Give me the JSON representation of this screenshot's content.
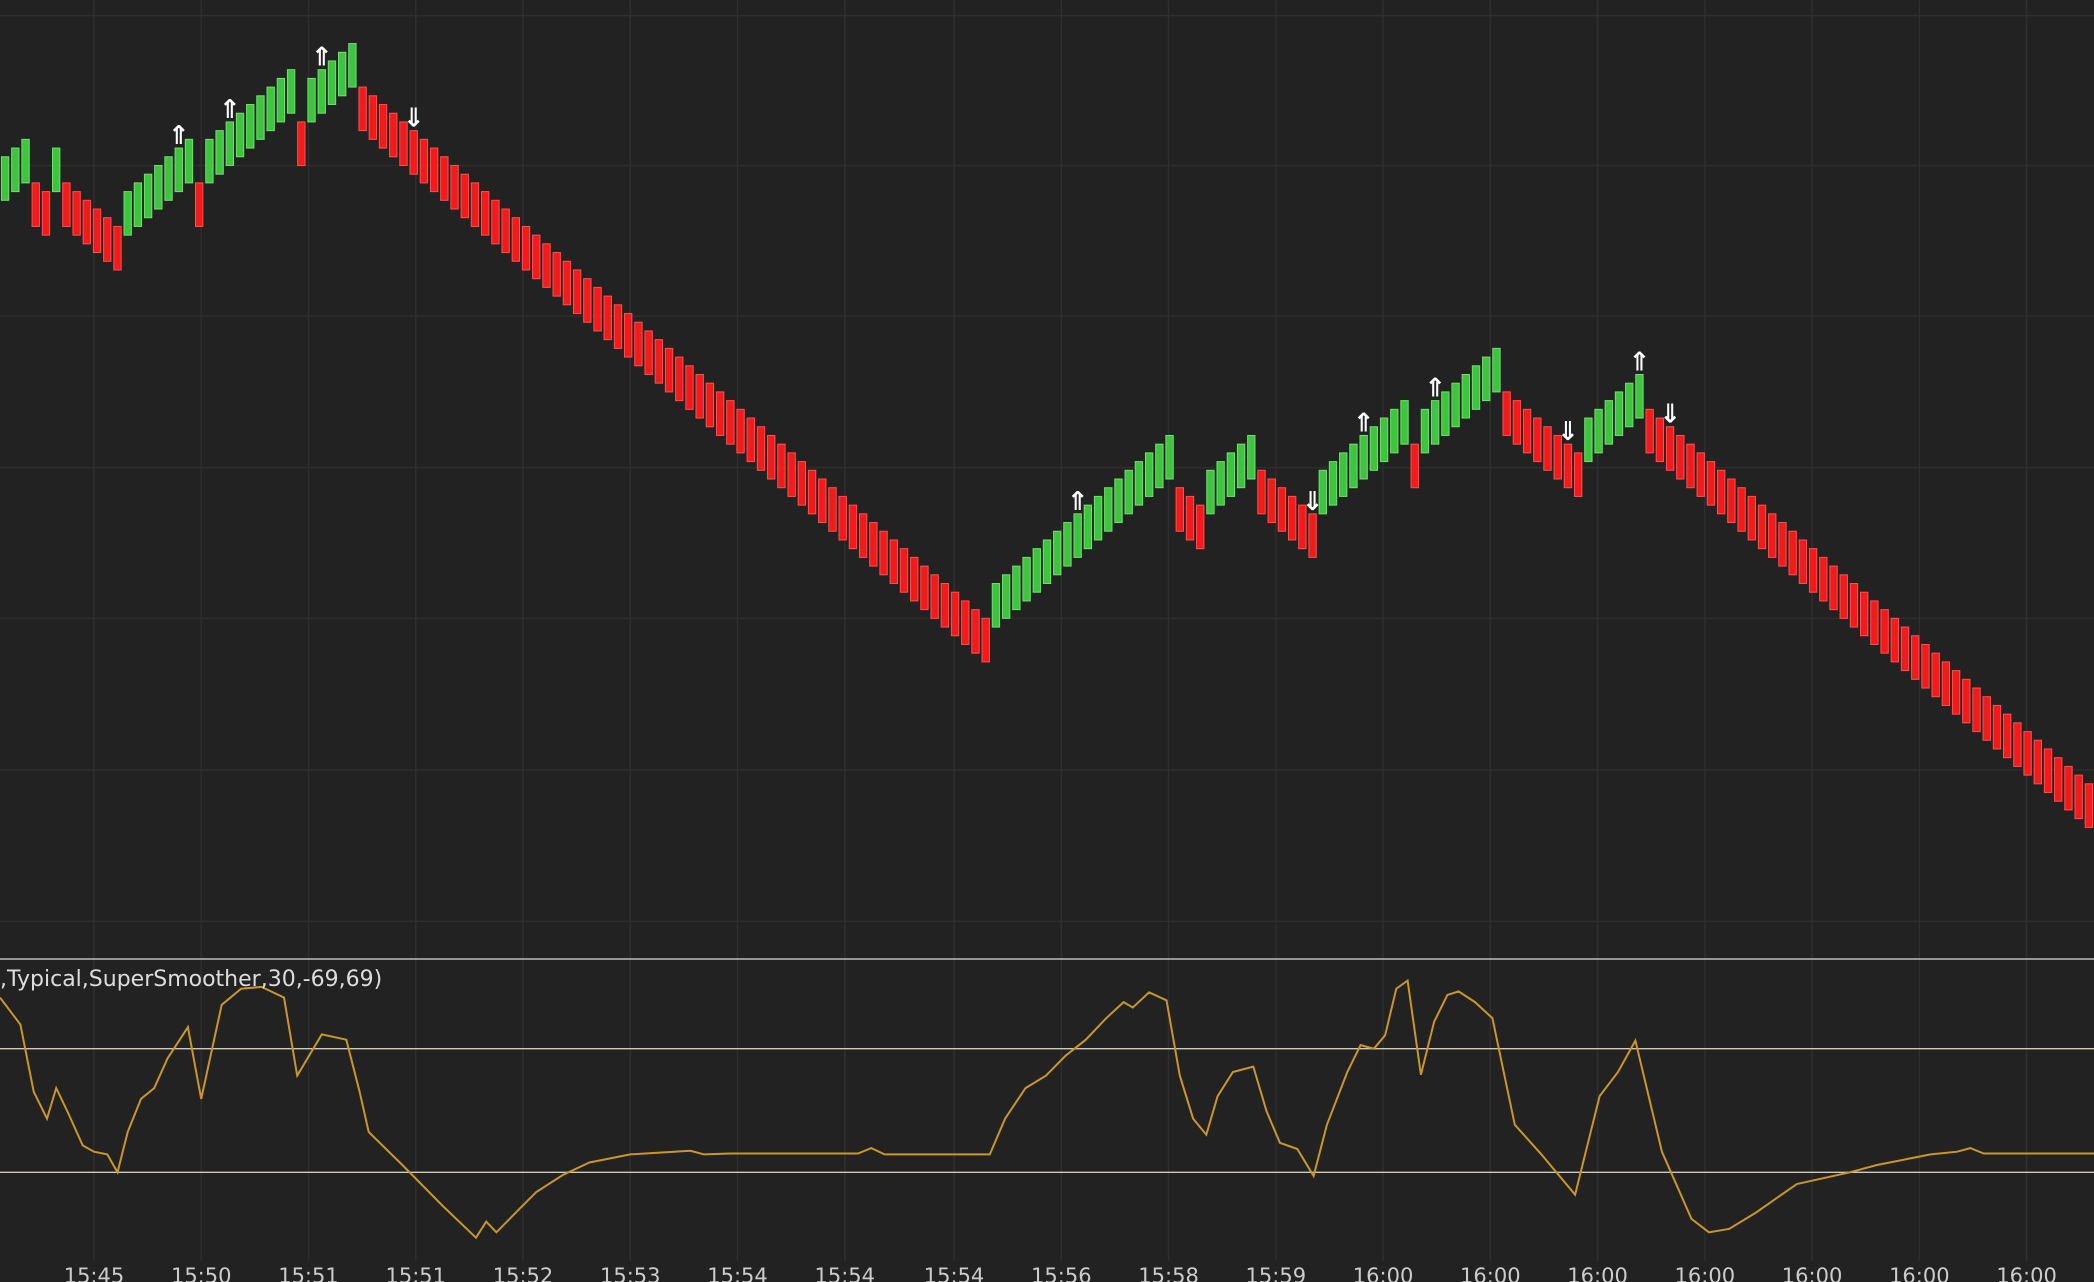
{
  "chart_data": [
    {
      "type": "renko",
      "xlim": [
        0,
        205
      ],
      "ylim": [
        0,
        110
      ],
      "ygrid": [
        108.2,
        91,
        73.7,
        56.3,
        39,
        21.6,
        4.2
      ],
      "xticks": [
        {
          "value": 9.2,
          "label": "15:45"
        },
        {
          "value": 19.7,
          "label": "15:50"
        },
        {
          "value": 30.2,
          "label": "15:51"
        },
        {
          "value": 40.7,
          "label": "15:51"
        },
        {
          "value": 51.2,
          "label": "15:52"
        },
        {
          "value": 61.7,
          "label": "15:53"
        },
        {
          "value": 72.2,
          "label": "15:54"
        },
        {
          "value": 82.7,
          "label": "15:54"
        },
        {
          "value": 93.4,
          "label": "15:54"
        },
        {
          "value": 103.9,
          "label": "15:56"
        },
        {
          "value": 114.4,
          "label": "15:58"
        },
        {
          "value": 124.9,
          "label": "15:59"
        },
        {
          "value": 135.4,
          "label": "16:00"
        },
        {
          "value": 145.9,
          "label": "16:00"
        },
        {
          "value": 156.4,
          "label": "16:00"
        },
        {
          "value": 166.9,
          "label": "16:00"
        },
        {
          "value": 177.4,
          "label": "16:00"
        },
        {
          "value": 187.9,
          "label": "16:00"
        },
        {
          "value": 198.4,
          "label": "16:00"
        }
      ],
      "up_color": "#3fc43f",
      "down_color": "#f21b1b",
      "open": [
        87,
        88,
        89,
        89,
        88,
        88,
        89,
        88,
        87,
        86,
        85,
        84,
        83,
        84,
        85,
        86,
        87,
        88,
        89,
        89,
        89,
        90,
        91,
        92,
        93,
        94,
        95,
        96,
        97,
        96,
        96,
        97,
        98,
        99,
        100,
        100,
        99,
        98,
        97,
        96,
        95,
        94,
        93,
        92,
        91,
        90,
        89,
        88,
        87,
        86,
        85,
        84,
        83,
        82,
        81,
        80,
        79,
        78,
        77,
        76,
        75,
        74,
        73,
        72,
        71,
        70,
        69,
        68,
        67,
        66,
        65,
        64,
        63,
        62,
        61,
        60,
        59,
        58,
        57,
        56,
        55,
        54,
        53,
        52,
        51,
        50,
        49,
        48,
        47,
        46,
        45,
        44,
        43,
        42,
        41,
        40,
        39,
        38,
        39,
        40,
        41,
        42,
        43,
        44,
        45,
        46,
        47,
        48,
        49,
        50,
        51,
        52,
        53,
        54,
        55,
        54,
        53,
        52,
        51,
        52,
        53,
        54,
        55,
        56,
        55,
        54,
        53,
        52,
        51,
        51,
        52,
        53,
        54,
        55,
        56,
        57,
        58,
        59,
        59,
        58,
        59,
        60,
        61,
        62,
        63,
        64,
        65,
        65,
        64,
        63,
        62,
        61,
        60,
        59,
        58,
        57,
        58,
        59,
        60,
        61,
        62,
        63,
        62,
        61,
        60,
        59,
        58,
        57,
        56,
        55,
        54,
        53,
        52,
        51,
        50,
        49,
        48,
        47,
        46,
        45,
        44,
        43,
        42,
        41,
        40,
        39,
        38,
        37,
        36,
        35,
        34,
        33,
        32,
        31,
        30,
        29,
        28,
        27,
        26,
        25,
        24,
        23,
        22,
        21,
        20
      ],
      "close": [
        92,
        93,
        94,
        84,
        83,
        93,
        84,
        83,
        82,
        81,
        80,
        79,
        88,
        89,
        90,
        91,
        92,
        93,
        94,
        84,
        94,
        95,
        96,
        97,
        98,
        99,
        100,
        101,
        102,
        91,
        101,
        102,
        103,
        104,
        105,
        95,
        94,
        93,
        92,
        91,
        90,
        89,
        88,
        87,
        86,
        85,
        84,
        83,
        82,
        81,
        80,
        79,
        78,
        77,
        76,
        75,
        74,
        73,
        72,
        71,
        70,
        69,
        68,
        67,
        66,
        65,
        64,
        63,
        62,
        61,
        60,
        59,
        58,
        57,
        56,
        55,
        54,
        53,
        52,
        51,
        50,
        49,
        48,
        47,
        46,
        45,
        44,
        43,
        42,
        41,
        40,
        39,
        38,
        37,
        36,
        35,
        34,
        43,
        44,
        45,
        46,
        47,
        48,
        49,
        50,
        51,
        52,
        53,
        54,
        55,
        56,
        57,
        58,
        59,
        60,
        49,
        48,
        47,
        56,
        57,
        58,
        59,
        60,
        51,
        50,
        49,
        48,
        47,
        46,
        56,
        57,
        58,
        59,
        60,
        61,
        62,
        63,
        64,
        54,
        63,
        64,
        65,
        66,
        67,
        68,
        69,
        70,
        60,
        59,
        58,
        57,
        56,
        55,
        54,
        53,
        62,
        63,
        64,
        65,
        66,
        67,
        58,
        57,
        56,
        55,
        54,
        53,
        52,
        51,
        50,
        49,
        48,
        47,
        46,
        45,
        44,
        43,
        42,
        41,
        40,
        39,
        38,
        37,
        36,
        35,
        34,
        33,
        32,
        31,
        30,
        29,
        28,
        27,
        26,
        25,
        24,
        23,
        22,
        21,
        20,
        19,
        18,
        17,
        16,
        15
      ],
      "signals": [
        {
          "index": 17,
          "label": "⇑"
        },
        {
          "index": 22,
          "label": "⇑"
        },
        {
          "index": 31,
          "label": "⇑"
        },
        {
          "index": 40,
          "label": "⇓"
        },
        {
          "index": 105,
          "label": "⇑"
        },
        {
          "index": 128,
          "label": "⇓"
        },
        {
          "index": 133,
          "label": "⇑"
        },
        {
          "index": 140,
          "label": "⇑"
        },
        {
          "index": 153,
          "label": "⇓"
        },
        {
          "index": 160,
          "label": "⇑"
        },
        {
          "index": 163,
          "label": "⇓"
        }
      ]
    },
    {
      "type": "line",
      "title": ",Typical,SuperSmoother,30,-69,69)",
      "xlim": [
        0,
        205
      ],
      "ylim": [
        -168,
        168
      ],
      "levels": [
        69,
        -69
      ],
      "color": "#c9962a",
      "x": [
        0,
        2,
        3.3,
        4.6,
        5.5,
        6.6,
        8.1,
        9.2,
        10.5,
        11.5,
        12.5,
        13.8,
        15.1,
        16.4,
        18.4,
        19.7,
        21.7,
        23.6,
        25.6,
        27.8,
        29.1,
        31.5,
        33.9,
        35.2,
        36.1,
        39.4,
        43.3,
        46.6,
        47.6,
        48.6,
        50.5,
        52.5,
        55.1,
        57.7,
        61.7,
        67.6,
        68.9,
        71.5,
        84,
        85.3,
        86.6,
        96.9,
        98.4,
        100.4,
        102.4,
        104.3,
        106.3,
        108.3,
        110,
        110.9,
        112.5,
        114.2,
        115.5,
        116.8,
        118.1,
        119.2,
        120.7,
        122.7,
        124,
        125.3,
        127,
        128.6,
        129.9,
        131.9,
        133.2,
        134.5,
        135.6,
        136.7,
        137.8,
        139.1,
        140.4,
        141.7,
        142.8,
        144.4,
        146.1,
        148.3,
        150.9,
        154.2,
        156.6,
        158.4,
        160.1,
        162.7,
        165.6,
        167.3,
        169.3,
        171.9,
        175.9,
        181.1,
        183.7,
        189,
        191.6,
        192.9,
        194.2,
        199.5,
        205
      ],
      "values": [
        126,
        96,
        21,
        -9,
        25,
        -1,
        -39,
        -46,
        -49,
        -69,
        -24,
        13,
        25,
        58,
        93,
        13,
        118,
        136,
        138,
        126,
        39,
        85,
        79,
        21,
        -24,
        -61,
        -106,
        -142,
        -124,
        -136,
        -114,
        -91,
        -72,
        -58,
        -49,
        -45,
        -49,
        -48,
        -48,
        -42,
        -49,
        -49,
        -9,
        25,
        39,
        61,
        79,
        103,
        121,
        115,
        132,
        123,
        39,
        -9,
        -27,
        16,
        43,
        49,
        -1,
        -36,
        -43,
        -73,
        -16,
        43,
        73,
        69,
        84,
        136,
        145,
        40,
        99,
        129,
        133,
        121,
        103,
        -16,
        -49,
        -94,
        16,
        43,
        78,
        -46,
        -121,
        -136,
        -132,
        -114,
        -82,
        -69,
        -61,
        -49,
        -46,
        -42,
        -48,
        -48,
        -48
      ]
    }
  ]
}
